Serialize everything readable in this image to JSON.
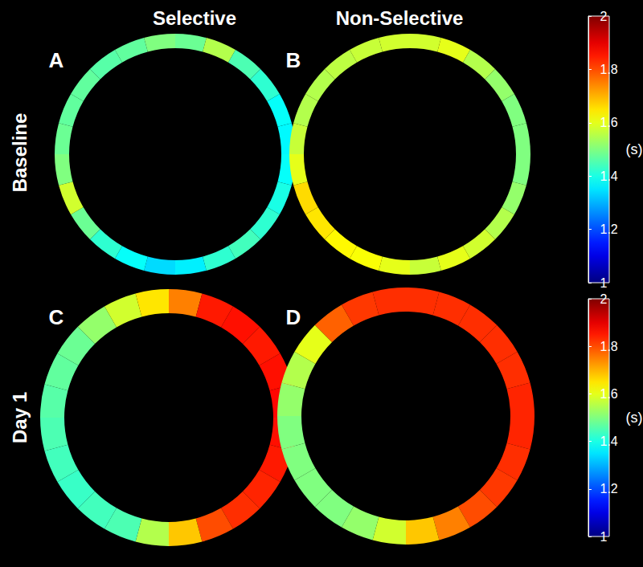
{
  "column_titles": [
    "Selective",
    "Non-Selective"
  ],
  "row_titles": [
    "Baseline",
    "Day 1"
  ],
  "colorbars": [
    {
      "label": "(s)",
      "range": [
        1,
        2
      ],
      "ticks": [
        1,
        1.2,
        1.4,
        1.6,
        1.8,
        2
      ]
    },
    {
      "label": "(s)",
      "range": [
        1,
        2
      ],
      "ticks": [
        1,
        1.2,
        1.4,
        1.6,
        1.8,
        2
      ]
    }
  ],
  "chart_data": [
    {
      "type": "heatmap",
      "title": "A",
      "values": [
        1.48,
        1.55,
        1.45,
        1.42,
        1.38,
        1.37,
        1.38,
        1.4,
        1.42,
        1.44,
        1.42,
        1.36,
        1.34,
        1.38,
        1.42,
        1.48,
        1.58,
        1.5,
        1.48,
        1.47,
        1.47,
        1.46,
        1.47,
        1.5
      ]
    },
    {
      "type": "heatmap",
      "title": "B",
      "values": [
        1.58,
        1.6,
        1.55,
        1.52,
        1.5,
        1.5,
        1.5,
        1.52,
        1.55,
        1.58,
        1.6,
        1.57,
        1.6,
        1.62,
        1.63,
        1.65,
        1.66,
        1.6,
        1.57,
        1.55,
        1.55,
        1.56,
        1.57,
        1.58
      ]
    },
    {
      "type": "heatmap",
      "title": "C",
      "values": [
        1.75,
        1.85,
        1.86,
        1.85,
        1.86,
        1.87,
        1.86,
        1.85,
        1.84,
        1.83,
        1.8,
        1.68,
        1.55,
        1.45,
        1.44,
        1.43,
        1.44,
        1.45,
        1.46,
        1.47,
        1.48,
        1.52,
        1.58,
        1.65
      ]
    },
    {
      "type": "heatmap",
      "title": "D",
      "values": [
        1.83,
        1.83,
        1.83,
        1.83,
        1.83,
        1.84,
        1.84,
        1.83,
        1.82,
        1.8,
        1.75,
        1.68,
        1.58,
        1.52,
        1.5,
        1.5,
        1.5,
        1.5,
        1.52,
        1.55,
        1.6,
        1.78,
        1.82,
        1.83
      ]
    }
  ]
}
